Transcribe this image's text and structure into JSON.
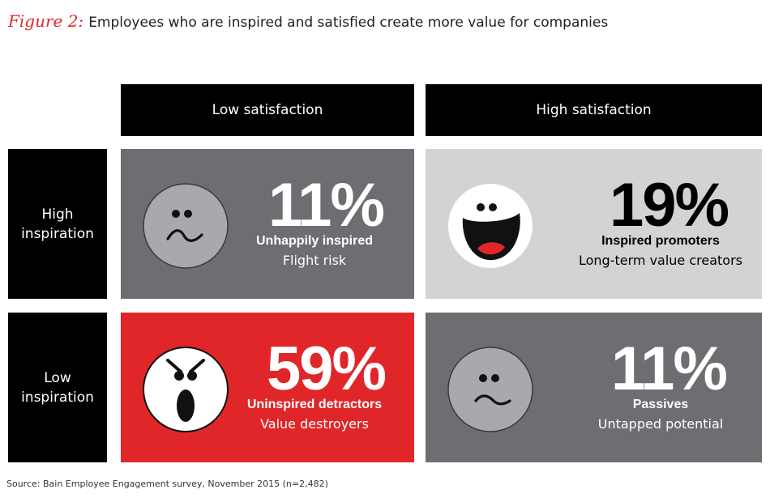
{
  "title": {
    "figure_label": "Figure 2:",
    "text": "Employees who are inspired and satisfied create more value for companies"
  },
  "chart_data": {
    "type": "table",
    "columns": [
      "Low satisfaction",
      "High satisfaction"
    ],
    "rows": [
      {
        "line1": "High",
        "line2": "inspiration"
      },
      {
        "line1": "Low",
        "line2": "inspiration"
      }
    ],
    "cells": [
      [
        {
          "percent": "11%",
          "label": "Unhappily inspired",
          "sublabel": "Flight risk",
          "face": "unhappy-face-icon",
          "bg": "#6d6e71",
          "fg": "#ffffff",
          "face_fill": "#a7a9ac"
        },
        {
          "percent": "19%",
          "label": "Inspired promoters",
          "sublabel": "Long-term value creators",
          "face": "happy-face-icon",
          "bg": "#d1d3d4",
          "fg": "#000000",
          "face_fill": "#ffffff"
        }
      ],
      [
        {
          "percent": "59%",
          "label": "Uninspired detractors",
          "sublabel": "Value destroyers",
          "face": "angry-face-icon",
          "bg": "#e1262a",
          "fg": "#ffffff",
          "face_fill": "#ffffff"
        },
        {
          "percent": "11%",
          "label": "Passives",
          "sublabel": "Untapped potential",
          "face": "neutral-face-icon",
          "bg": "#6d6e71",
          "fg": "#ffffff",
          "face_fill": "#a7a9ac"
        }
      ]
    ]
  },
  "source": "Source: Bain Employee Engagement survey, November 2015 (n=2,482)"
}
